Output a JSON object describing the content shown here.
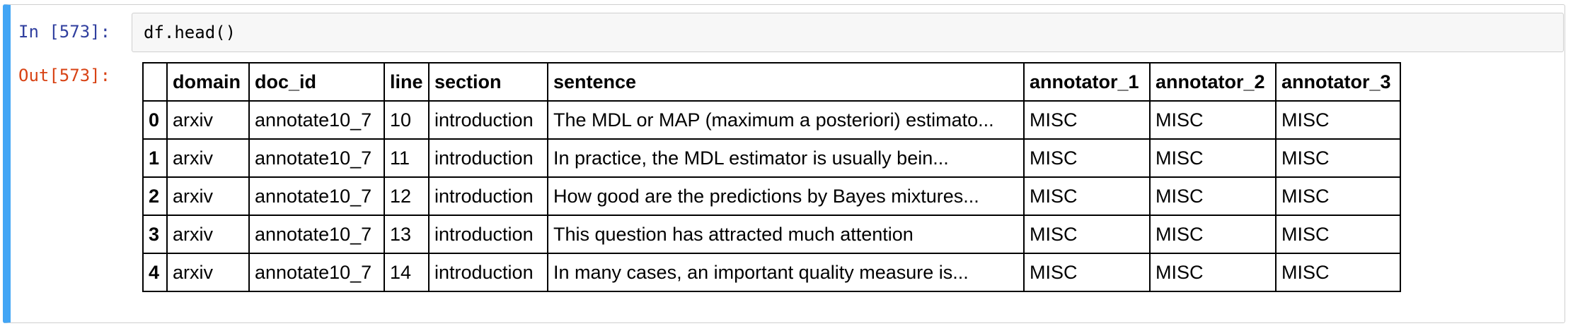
{
  "input_cell": {
    "prompt": "In [573]:",
    "code": "df.head()"
  },
  "output_cell": {
    "prompt": "Out[573]:"
  },
  "table": {
    "index_header": "",
    "columns": [
      "domain",
      "doc_id",
      "line",
      "section",
      "sentence",
      "annotator_1",
      "annotator_2",
      "annotator_3"
    ],
    "rows": [
      {
        "index": "0",
        "cells": [
          "arxiv",
          "annotate10_7",
          "10",
          "introduction",
          "The MDL or MAP (maximum a posteriori) estimato...",
          "MISC",
          "MISC",
          "MISC"
        ]
      },
      {
        "index": "1",
        "cells": [
          "arxiv",
          "annotate10_7",
          "11",
          "introduction",
          "In practice, the MDL estimator is usually bein...",
          "MISC",
          "MISC",
          "MISC"
        ]
      },
      {
        "index": "2",
        "cells": [
          "arxiv",
          "annotate10_7",
          "12",
          "introduction",
          "How good are the predictions by Bayes mixtures...",
          "MISC",
          "MISC",
          "MISC"
        ]
      },
      {
        "index": "3",
        "cells": [
          "arxiv",
          "annotate10_7",
          "13",
          "introduction",
          "This question has attracted much attention",
          "MISC",
          "MISC",
          "MISC"
        ]
      },
      {
        "index": "4",
        "cells": [
          "arxiv",
          "annotate10_7",
          "14",
          "introduction",
          "In many cases, an important quality measure is...",
          "MISC",
          "MISC",
          "MISC"
        ]
      }
    ]
  },
  "colors": {
    "cell_selected_border": "#42a5f5",
    "in_prompt": "#303f9f",
    "out_prompt": "#d84315",
    "input_background": "#f7f7f7"
  }
}
